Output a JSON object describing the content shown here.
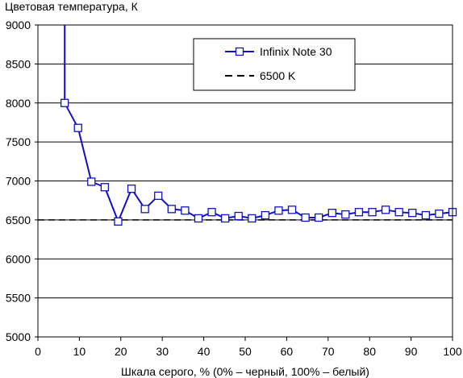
{
  "chart_data": {
    "type": "line",
    "title": "Цветовая температура, К",
    "xlabel": "Шкала серого, % (0% – черный, 100% – белый)",
    "ylabel": "",
    "xlim": [
      0,
      100
    ],
    "ylim": [
      5000,
      9000
    ],
    "x_ticks": [
      0,
      10,
      20,
      30,
      40,
      50,
      60,
      70,
      80,
      90,
      100
    ],
    "y_ticks": [
      5000,
      5500,
      6000,
      6500,
      7000,
      7500,
      8000,
      8500,
      9000
    ],
    "grid": "horizontal",
    "legend_position": "top-right",
    "series": [
      {
        "name": "Infinix Note 30",
        "color": "#1010c8",
        "marker": "square",
        "x": [
          6.45,
          6.45,
          9.68,
          12.9,
          16.13,
          19.35,
          22.58,
          25.81,
          29.03,
          32.26,
          35.48,
          38.71,
          41.94,
          45.16,
          48.39,
          51.61,
          54.84,
          58.06,
          61.29,
          64.52,
          67.74,
          70.97,
          74.19,
          77.42,
          80.65,
          83.87,
          87.1,
          90.32,
          93.55,
          96.77,
          100
        ],
        "y": [
          9000,
          8000,
          7680,
          6990,
          6920,
          6480,
          6900,
          6640,
          6810,
          6640,
          6620,
          6520,
          6600,
          6520,
          6550,
          6520,
          6560,
          6620,
          6630,
          6530,
          6530,
          6590,
          6570,
          6600,
          6600,
          6630,
          6600,
          6590,
          6560,
          6580,
          6600
        ],
        "marker_from_index": 1
      },
      {
        "name": "6500 K",
        "color": "#000000",
        "style": "dashed",
        "x": [
          0,
          100
        ],
        "y": [
          6500,
          6500
        ]
      }
    ]
  }
}
